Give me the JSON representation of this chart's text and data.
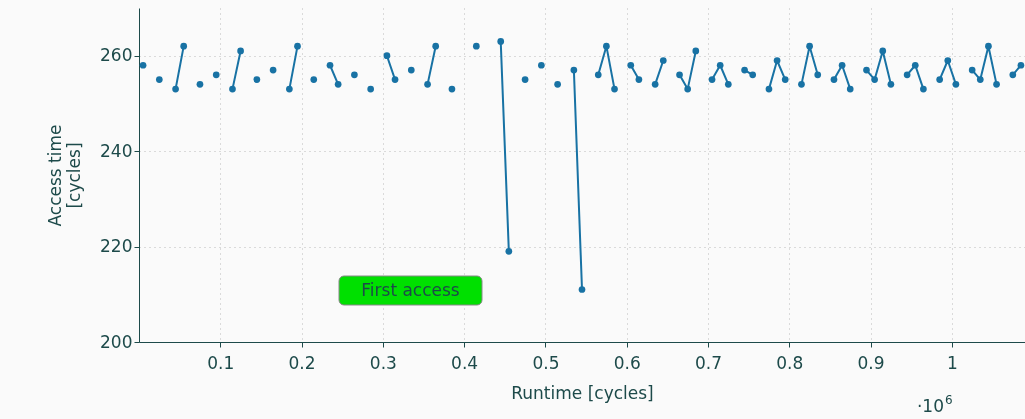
{
  "chart_data": {
    "type": "line",
    "xlabel": "Runtime [cycles]",
    "ylabel": "Access time\n[cycles]",
    "annotations": [
      "First access",
      "·10$^{6}$"
    ],
    "xlim": [
      0,
      1.09
    ],
    "xticks": [
      0.1,
      0.2,
      0.3,
      0.4,
      0.5,
      0.6,
      0.7,
      0.8,
      0.9,
      1
    ],
    "ylim": [
      200,
      270
    ],
    "yticks": [
      200,
      220,
      240,
      260
    ],
    "grid": true,
    "marker": "circle",
    "line_style": "solid",
    "x": [
      0.005,
      0.015,
      0.025,
      0.035,
      0.045,
      0.055,
      0.065,
      0.075,
      0.085,
      0.095,
      0.105,
      0.115,
      0.125,
      0.135,
      0.145,
      0.155,
      0.165,
      0.175,
      0.185,
      0.195,
      0.205,
      0.215,
      0.225,
      0.235,
      0.245,
      0.255,
      0.265,
      0.275,
      0.285,
      0.295,
      0.305,
      0.315,
      0.325,
      0.335,
      0.345,
      0.355,
      0.365,
      0.375,
      0.385,
      0.395,
      0.405,
      0.415,
      0.425,
      0.435,
      0.445,
      0.455,
      0.465,
      0.475,
      0.485,
      0.495,
      0.505,
      0.515,
      0.525,
      0.535,
      0.545,
      0.555,
      0.565,
      0.575,
      0.585,
      0.595,
      0.605,
      0.615,
      0.625,
      0.635,
      0.645,
      0.655,
      0.665,
      0.675,
      0.685,
      0.695,
      0.705,
      0.715,
      0.725,
      0.735,
      0.745,
      0.755,
      0.765,
      0.775,
      0.785,
      0.795,
      0.805,
      0.815,
      0.825,
      0.835,
      0.845,
      0.855,
      0.865,
      0.875,
      0.885,
      0.895,
      0.905,
      0.915,
      0.925,
      0.935,
      0.945,
      0.955,
      0.965,
      0.975,
      0.985,
      0.995,
      1.005,
      1.015,
      1.025,
      1.035,
      1.045,
      1.055,
      1.065,
      1.075,
      1.085
    ],
    "series": [
      {
        "color": "#1872a4",
        "values": [
          258,
          null,
          255,
          null,
          253,
          262,
          null,
          254,
          null,
          256,
          null,
          253,
          261,
          null,
          255,
          null,
          257,
          null,
          253,
          262,
          null,
          255,
          null,
          258,
          254,
          null,
          256,
          null,
          253,
          null,
          260,
          255,
          null,
          257,
          null,
          254,
          262,
          null,
          253,
          null,
          null,
          262,
          null,
          null,
          263,
          219,
          null,
          255,
          null,
          258,
          null,
          254,
          null,
          257,
          211,
          null,
          256,
          262,
          253,
          null,
          258,
          255,
          null,
          254,
          259,
          null,
          256,
          253,
          261,
          null,
          255,
          258,
          254,
          null,
          257,
          256,
          null,
          253,
          259,
          255,
          null,
          254,
          262,
          256,
          null,
          255,
          258,
          253,
          null,
          257,
          255,
          261,
          254,
          null,
          256,
          258,
          253,
          null,
          255,
          259,
          254,
          null,
          257,
          255,
          262,
          254,
          null,
          256,
          258
        ]
      }
    ]
  }
}
